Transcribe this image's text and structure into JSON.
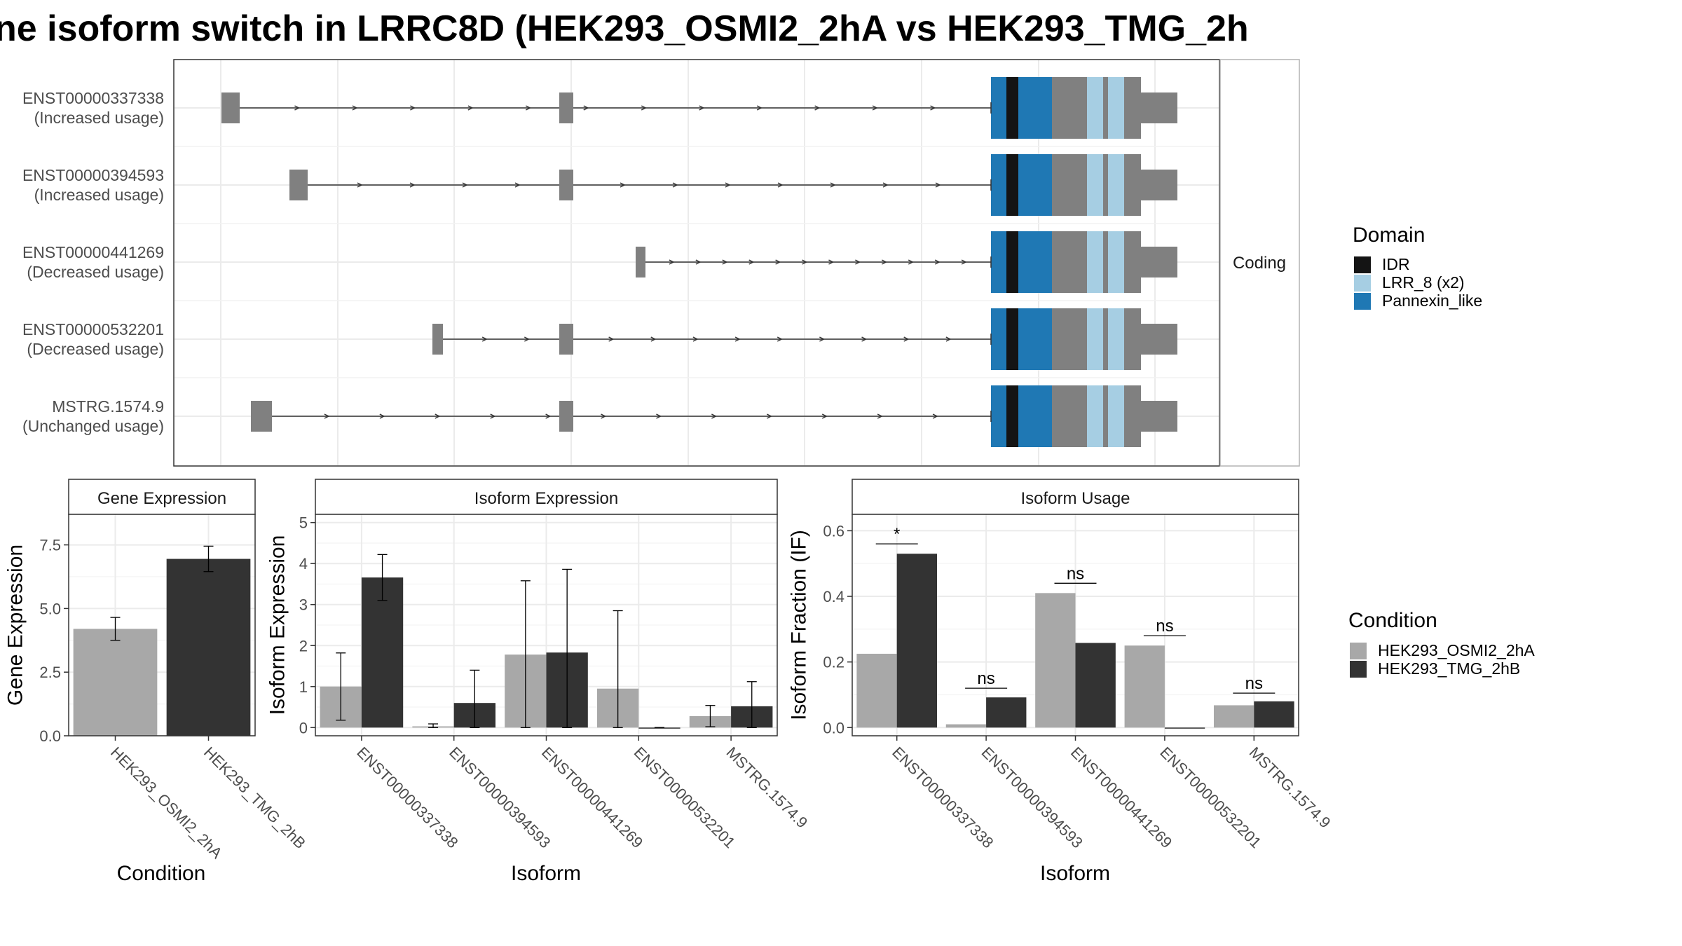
{
  "title": "ne isoform switch in LRRC8D (HEK293_OSMI2_2hA vs HEK293_TMG_2h",
  "colors": {
    "exon": "#808080",
    "IDR": "#141414",
    "LRR_8": "#a6cee3",
    "Pannexin_like": "#1f78b4",
    "cond1": "#a8a8a8",
    "cond2": "#333333",
    "grid": "#ebebeb",
    "panel_border": "#333333",
    "strip_fill": "#ffffff"
  },
  "transcripts": {
    "facet_label": "Coding",
    "rows": [
      {
        "id": "ENST00000337338",
        "usage": "(Increased usage)"
      },
      {
        "id": "ENST00000394593",
        "usage": "(Increased usage)"
      },
      {
        "id": "ENST00000441269",
        "usage": "(Decreased usage)"
      },
      {
        "id": "ENST00000532201",
        "usage": "(Decreased usage)"
      },
      {
        "id": "MSTRG.1574.9",
        "usage": "(Unchanged usage)"
      }
    ]
  },
  "legend_domain": {
    "title": "Domain",
    "items": [
      {
        "label": "IDR",
        "color_key": "IDR"
      },
      {
        "label": "LRR_8 (x2)",
        "color_key": "LRR_8"
      },
      {
        "label": "Pannexin_like",
        "color_key": "Pannexin_like"
      }
    ]
  },
  "legend_condition": {
    "title": "Condition",
    "items": [
      {
        "label": "HEK293_OSMI2_2hA",
        "color_key": "cond1"
      },
      {
        "label": "HEK293_TMG_2hB",
        "color_key": "cond2"
      }
    ]
  },
  "chart_data": [
    {
      "type": "bar",
      "title": "Gene Expression",
      "xlabel": "Condition",
      "ylabel": "Gene Expression",
      "ylim": [
        0,
        8.7
      ],
      "yticks": [
        0,
        2.5,
        5,
        7.5
      ],
      "ytick_labels": [
        "0.0",
        "2.5",
        "5.0",
        "7.5"
      ],
      "categories": [
        "HEK293_OSMI2_2hA",
        "HEK293_TMG_2hB"
      ],
      "values": [
        4.2,
        6.95
      ],
      "errors": [
        [
          3.75,
          4.65
        ],
        [
          6.45,
          7.45
        ]
      ]
    },
    {
      "type": "bar",
      "title": "Isoform Expression",
      "xlabel": "Isoform",
      "ylabel": "Isoform Expression",
      "ylim": [
        -0.2,
        5.2
      ],
      "yticks": [
        0,
        1,
        2,
        3,
        4,
        5
      ],
      "ytick_labels": [
        "0",
        "1",
        "2",
        "3",
        "4",
        "5"
      ],
      "categories": [
        "ENST00000337338",
        "ENST00000394593",
        "ENST00000441269",
        "ENST00000532201",
        "MSTRG.1574.9"
      ],
      "series": [
        {
          "name": "HEK293_OSMI2_2hA",
          "values": [
            1.0,
            0.03,
            1.78,
            0.95,
            0.28
          ],
          "errors": [
            [
              0.18,
              1.82
            ],
            [
              0.0,
              0.09
            ],
            [
              0.0,
              3.58
            ],
            [
              0.0,
              2.85
            ],
            [
              0.02,
              0.54
            ]
          ]
        },
        {
          "name": "HEK293_TMG_2hB",
          "values": [
            3.66,
            0.6,
            1.83,
            0.0,
            0.52
          ],
          "errors": [
            [
              3.1,
              4.22
            ],
            [
              0.0,
              1.4
            ],
            [
              0.0,
              3.86
            ],
            [
              0.0,
              0.0
            ],
            [
              0.0,
              1.12
            ]
          ]
        }
      ]
    },
    {
      "type": "bar",
      "title": "Isoform Usage",
      "xlabel": "Isoform",
      "ylabel": "Isoform Fraction (IF)",
      "ylim": [
        -0.025,
        0.65
      ],
      "yticks": [
        0,
        0.2,
        0.4,
        0.6
      ],
      "ytick_labels": [
        "0.0",
        "0.2",
        "0.4",
        "0.6"
      ],
      "categories": [
        "ENST00000337338",
        "ENST00000394593",
        "ENST00000441269",
        "ENST00000532201",
        "MSTRG.1574.9"
      ],
      "series": [
        {
          "name": "HEK293_OSMI2_2hA",
          "values": [
            0.225,
            0.01,
            0.41,
            0.25,
            0.068
          ]
        },
        {
          "name": "HEK293_TMG_2hB",
          "values": [
            0.53,
            0.092,
            0.258,
            0.0,
            0.08
          ]
        }
      ],
      "significance": [
        {
          "label": "*",
          "y": 0.56
        },
        {
          "label": "ns",
          "y": 0.12
        },
        {
          "label": "ns",
          "y": 0.44
        },
        {
          "label": "ns",
          "y": 0.28
        },
        {
          "label": "ns",
          "y": 0.105
        }
      ]
    }
  ]
}
